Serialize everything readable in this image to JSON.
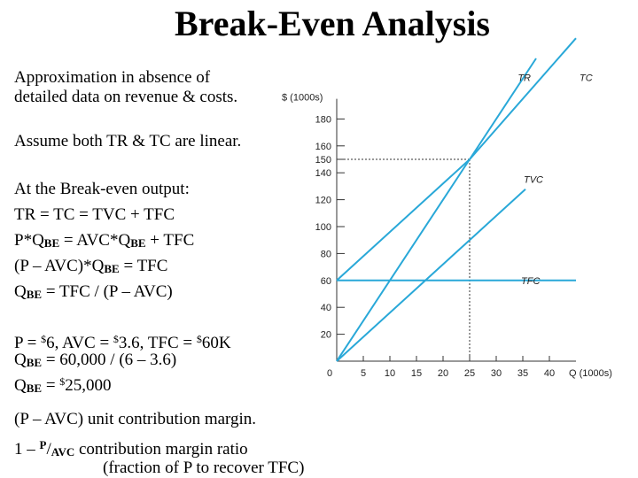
{
  "title": "Break-Even Analysis",
  "text": {
    "intro_1": "Approximation in absence of",
    "intro_2": "detailed data on revenue & costs.",
    "assume": "Assume both TR & TC are linear.",
    "heading": "At the Break-even output:",
    "eq1": "TR = TC = TVC + TFC",
    "eq2_a": "P*Q",
    "eq2_b": "BE",
    "eq2_c": " = AVC*Q",
    "eq2_d": "BE",
    "eq2_e": " + TFC",
    "eq3_a": "(P – AVC)*Q",
    "eq3_b": "BE",
    "eq3_c": " = TFC",
    "eq4_a": "Q",
    "eq4_b": "BE",
    "eq4_c": " = TFC / (P – AVC)",
    "ex1_a": "P = ",
    "ex1_s1": "$",
    "ex1_b": "6, AVC = ",
    "ex1_s2": "$",
    "ex1_c": "3.6, TFC = ",
    "ex1_s3": "$",
    "ex1_d": "60K",
    "ex2_a": "Q",
    "ex2_b": "BE",
    "ex2_c": " = 60,000 / (6 – 3.6)",
    "ex3_a": "Q",
    "ex3_b": "BE",
    "ex3_c": " = ",
    "ex3_s": "$",
    "ex3_d": "25,000",
    "cm1": "(P – AVC) unit contribution margin.",
    "cm2_a": "1 – ",
    "cm2_p": "P",
    "cm2_slash": "/",
    "cm2_avc": "AVC",
    "cm2_b": "  contribution margin ratio",
    "cm3": "(fraction of P to recover TFC)"
  },
  "chart_data": {
    "type": "line",
    "ylabel": "$ (1000s)",
    "xlabel": "Q (1000s)",
    "x_ticks": [
      "0",
      "5",
      "10",
      "15",
      "20",
      "25",
      "30",
      "35",
      "40"
    ],
    "y_ticks": [
      "20",
      "40",
      "60",
      "80",
      "100",
      "120",
      "140",
      "150",
      "160",
      "180"
    ],
    "xlim": [
      0,
      45
    ],
    "ylim": [
      0,
      195
    ],
    "series": [
      {
        "name": "TR",
        "x": [
          0,
          25,
          37.5
        ],
        "y": [
          0,
          150,
          225
        ]
      },
      {
        "name": "TC",
        "x": [
          0,
          25,
          45
        ],
        "y": [
          60,
          150,
          240
        ]
      },
      {
        "name": "TVC",
        "x": [
          0,
          25,
          35.5
        ],
        "y": [
          0,
          90,
          127.8
        ]
      },
      {
        "name": "TFC",
        "x": [
          0,
          45
        ],
        "y": [
          60,
          60
        ]
      }
    ],
    "break_even": {
      "x": 25,
      "y": 150
    },
    "line_color": "#29a8d8"
  }
}
